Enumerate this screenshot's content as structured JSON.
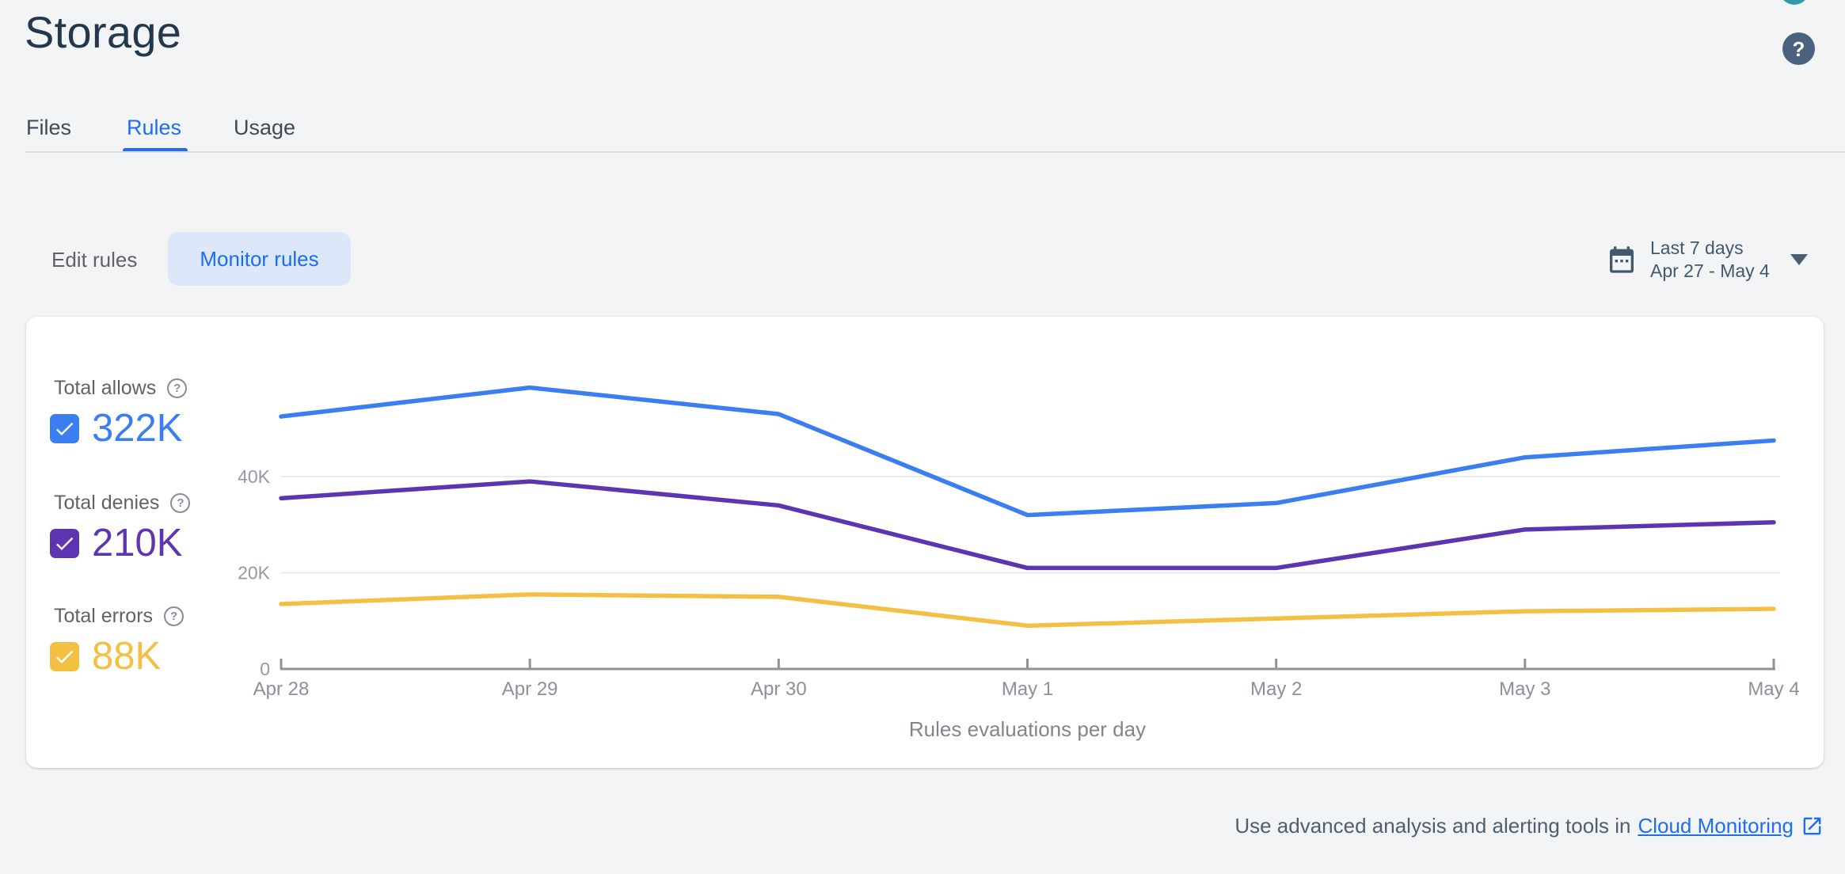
{
  "header": {
    "title": "Storage",
    "help_glyph": "?"
  },
  "tabs": [
    {
      "label": "Files",
      "active": false
    },
    {
      "label": "Rules",
      "active": true
    },
    {
      "label": "Usage",
      "active": false
    }
  ],
  "toolbar": {
    "edit_rules_label": "Edit rules",
    "monitor_rules_label": "Monitor rules",
    "date_range": {
      "preset": "Last 7 days",
      "range": "Apr 27 - May 4",
      "icon": "calendar-icon"
    }
  },
  "stats": [
    {
      "label": "Total allows",
      "value": "322K",
      "color": "#3b7ef2",
      "checked": true
    },
    {
      "label": "Total denies",
      "value": "210K",
      "color": "#5e35b1",
      "checked": true
    },
    {
      "label": "Total errors",
      "value": "88K",
      "color": "#f3c044",
      "checked": true
    }
  ],
  "icons": {
    "help_glyph": "?"
  },
  "chart_data": {
    "type": "line",
    "title": "Rules evaluations per day",
    "x": [
      "Apr 28",
      "Apr 29",
      "Apr 30",
      "May 1",
      "May 2",
      "May 3",
      "May 4"
    ],
    "y_ticks": [
      {
        "label": "0",
        "value": 0
      },
      {
        "label": "20K",
        "value": 20000
      },
      {
        "label": "40K",
        "value": 40000
      }
    ],
    "ylim": [
      0,
      63000
    ],
    "grid": true,
    "legend_position": "left",
    "series": [
      {
        "name": "Total allows",
        "color": "#3b7ef2",
        "values": [
          52500,
          58500,
          53000,
          32000,
          34500,
          44000,
          47500
        ]
      },
      {
        "name": "Total denies",
        "color": "#5e35b1",
        "values": [
          35500,
          39000,
          34000,
          21000,
          21000,
          29000,
          30500
        ]
      },
      {
        "name": "Total errors",
        "color": "#f3c044",
        "values": [
          13500,
          15500,
          15000,
          9000,
          10500,
          12000,
          12500
        ]
      }
    ]
  },
  "footer": {
    "text": "Use advanced analysis and alerting tools in",
    "link_label": "Cloud Monitoring"
  }
}
